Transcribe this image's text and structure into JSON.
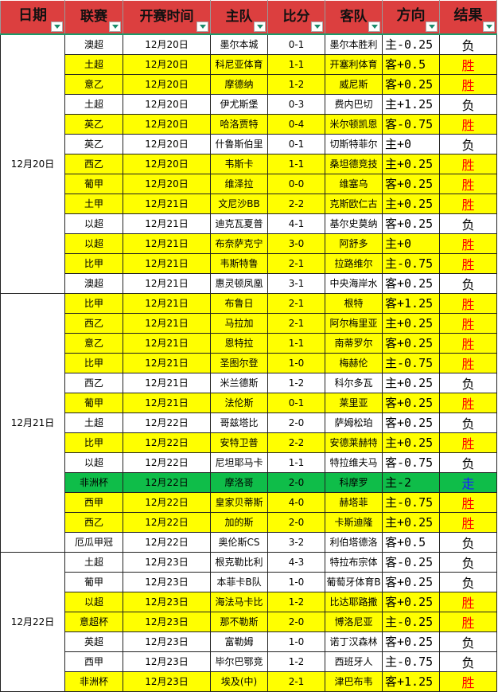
{
  "headers": [
    "日期",
    "联赛",
    "开赛时间",
    "主队",
    "比分",
    "客队",
    "方向",
    "结果"
  ],
  "colors": {
    "header": "#dc3f3f",
    "highlight": "#ffff00",
    "push_row": "#0fbd49",
    "win": "#ff0000",
    "loss": "#000000",
    "push": "#1a1aff"
  },
  "groups": [
    {
      "date": "12月20日",
      "rows": [
        [
          "澳超",
          "12月20日",
          "墨尔本城",
          "0-1",
          "墨尔本胜利",
          "主-0.25",
          "负",
          "w"
        ],
        [
          "土超",
          "12月20日",
          "科尼亚体育",
          "1-1",
          "开塞利体育",
          "客+0.5",
          "胜",
          "y"
        ],
        [
          "意乙",
          "12月20日",
          "摩德纳",
          "1-2",
          "威尼斯",
          "客+0.25",
          "胜",
          "y"
        ],
        [
          "土超",
          "12月20日",
          "伊尤斯堡",
          "0-3",
          "费内巴切",
          "主+1.25",
          "负",
          "w"
        ],
        [
          "英乙",
          "12月20日",
          "哈洛贾特",
          "0-4",
          "米尔顿凯恩",
          "客-0.75",
          "胜",
          "y"
        ],
        [
          "英乙",
          "12月20日",
          "什鲁斯伯里",
          "0-1",
          "切斯特菲尔",
          "主+0",
          "负",
          "w"
        ],
        [
          "西乙",
          "12月20日",
          "韦斯卡",
          "1-1",
          "桑坦德竞技",
          "主+0.25",
          "胜",
          "y"
        ],
        [
          "葡甲",
          "12月20日",
          "维泽拉",
          "0-0",
          "维塞乌",
          "客+0.25",
          "胜",
          "y"
        ],
        [
          "土甲",
          "12月21日",
          "文尼沙BB",
          "2-2",
          "克斯欧仁古",
          "主+0.25",
          "胜",
          "y"
        ],
        [
          "以超",
          "12月21日",
          "迪克瓦夏普",
          "4-1",
          "基尔史莫纳",
          "客+0.25",
          "负",
          "w"
        ],
        [
          "以超",
          "12月21日",
          "布奈萨克宁",
          "3-0",
          "阿舒多",
          "主+0",
          "胜",
          "y"
        ],
        [
          "比甲",
          "12月21日",
          "韦斯特鲁",
          "2-1",
          "拉路维尔",
          "主-0.75",
          "胜",
          "y"
        ],
        [
          "澳超",
          "12月21日",
          "惠灵顿凤凰",
          "3-1",
          "中央海岸水",
          "客+0.25",
          "负",
          "w"
        ]
      ]
    },
    {
      "date": "12月21日",
      "rows": [
        [
          "比甲",
          "12月21日",
          "布鲁日",
          "2-1",
          "根特",
          "客+1.25",
          "胜",
          "y"
        ],
        [
          "西乙",
          "12月21日",
          "马拉加",
          "2-1",
          "阿尔梅里亚",
          "主+0.25",
          "胜",
          "y"
        ],
        [
          "意乙",
          "12月21日",
          "恩特拉",
          "1-1",
          "南蒂罗尔",
          "客+0.25",
          "胜",
          "y"
        ],
        [
          "比甲",
          "12月21日",
          "圣图尔登",
          "1-0",
          "梅赫伦",
          "主-0.75",
          "胜",
          "y"
        ],
        [
          "西乙",
          "12月21日",
          "米兰德斯",
          "1-2",
          "科尔多瓦",
          "主+0.25",
          "负",
          "w"
        ],
        [
          "葡甲",
          "12月21日",
          "法伦斯",
          "0-1",
          "莱里亚",
          "客+0.25",
          "胜",
          "y"
        ],
        [
          "土超",
          "12月22日",
          "哥兹塔比",
          "2-0",
          "萨姆松珀",
          "客+0.25",
          "负",
          "w"
        ],
        [
          "比甲",
          "12月22日",
          "安特卫普",
          "2-2",
          "安德莱赫特",
          "主+0.25",
          "胜",
          "y"
        ],
        [
          "以超",
          "12月22日",
          "尼坦耶马卡",
          "1-1",
          "特拉维夫马",
          "客-0.75",
          "负",
          "w"
        ],
        [
          "非洲杯",
          "12月22日",
          "摩洛哥",
          "2-0",
          "科摩罗",
          "主-2",
          "走",
          "g"
        ],
        [
          "西甲",
          "12月22日",
          "皇家贝蒂斯",
          "4-0",
          "赫塔菲",
          "主-0.75",
          "胜",
          "y"
        ],
        [
          "西乙",
          "12月22日",
          "加的斯",
          "2-0",
          "卡斯迪隆",
          "主+0.25",
          "胜",
          "y"
        ],
        [
          "厄瓜甲冠",
          "12月22日",
          "奥伦斯CS",
          "3-2",
          "利伯塔德洛",
          "客+0.5",
          "负",
          "w"
        ]
      ]
    },
    {
      "date": "12月22日",
      "rows": [
        [
          "土超",
          "12月23日",
          "根克勒比利",
          "4-3",
          "特拉布宗体",
          "客-0.25",
          "负",
          "w"
        ],
        [
          "葡甲",
          "12月23日",
          "本菲卡B队",
          "1-0",
          "葡萄牙体育B",
          "客+0.25",
          "负",
          "w"
        ],
        [
          "以超",
          "12月23日",
          "海法马卡比",
          "1-2",
          "比达耶路撒",
          "客+0.25",
          "胜",
          "y"
        ],
        [
          "意超杯",
          "12月23日",
          "那不勒斯",
          "2-0",
          "博洛尼亚",
          "主-0.25",
          "胜",
          "y"
        ],
        [
          "英超",
          "12月23日",
          "富勒姆",
          "1-0",
          "诺丁汉森林",
          "客+0.25",
          "负",
          "w"
        ],
        [
          "西甲",
          "12月23日",
          "毕尔巴鄂竞",
          "1-2",
          "西班牙人",
          "主-0.75",
          "负",
          "w"
        ],
        [
          "非洲杯",
          "12月23日",
          "埃及(中)",
          "2-1",
          "津巴布韦",
          "客+1.25",
          "胜",
          "y"
        ]
      ]
    }
  ]
}
